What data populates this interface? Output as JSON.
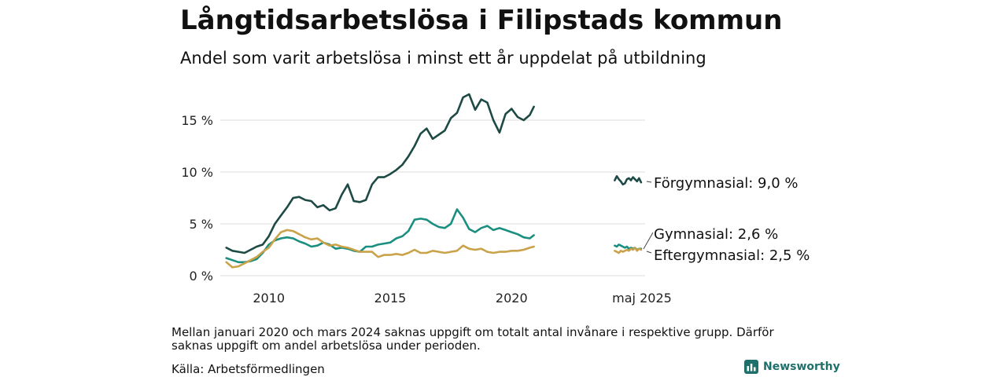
{
  "title": "Långtidsarbetslösa i Filipstads kommun",
  "subtitle": "Andel som varit arbetslösa i minst ett år uppdelat på utbildning",
  "note": "Mellan januari 2020 och mars 2024 saknas uppgift om totalt antal invånare i respektive grupp. Därför saknas uppgift om andel arbetslösa under perioden.",
  "source": "Källa: Arbetsförmedlingen",
  "brand": "Newsworthy",
  "colors": {
    "forgymnasial": "#1d4a44",
    "gymnasial": "#1a8f80",
    "eftergymnasial": "#c9a24a",
    "grid": "#dddddd",
    "brand": "#1f6f6a"
  },
  "chart_data": {
    "type": "line",
    "x_ticks": [
      "2010",
      "2015",
      "2020",
      "maj 2025"
    ],
    "y_ticks": [
      "0 %",
      "5 %",
      "10 %",
      "15 %"
    ],
    "ylim": [
      0,
      18
    ],
    "grid": true,
    "series_keys": [
      {
        "name": "Förgymnasial",
        "end_label": "Förgymnasial: 9,0 %",
        "color_key": "forgymnasial"
      },
      {
        "name": "Gymnasial",
        "end_label": "Gymnasial: 2,6 %",
        "color_key": "gymnasial"
      },
      {
        "name": "Eftergymnasial",
        "end_label": "Eftergymnasial: 2,5 %",
        "color_key": "eftergymnasial"
      }
    ],
    "series": [
      {
        "name": "Förgymnasial",
        "x": [
          "2008-04",
          "2008-07",
          "2008-10",
          "2009-01",
          "2009-04",
          "2009-07",
          "2009-10",
          "2010-01",
          "2010-04",
          "2010-07",
          "2010-10",
          "2011-01",
          "2011-04",
          "2011-07",
          "2011-10",
          "2012-01",
          "2012-04",
          "2012-07",
          "2012-10",
          "2013-01",
          "2013-04",
          "2013-07",
          "2013-10",
          "2014-01",
          "2014-04",
          "2014-07",
          "2014-10",
          "2015-01",
          "2015-04",
          "2015-07",
          "2015-10",
          "2016-01",
          "2016-04",
          "2016-07",
          "2016-10",
          "2017-01",
          "2017-04",
          "2017-07",
          "2017-10",
          "2018-01",
          "2018-04",
          "2018-07",
          "2018-10",
          "2019-01",
          "2019-04",
          "2019-07",
          "2019-10",
          "2020-01",
          "2020-04",
          "2020-07",
          "2020-10",
          "2020-12"
        ],
        "values": [
          2.7,
          2.4,
          2.3,
          2.2,
          2.5,
          2.8,
          3.0,
          3.8,
          5.0,
          5.8,
          6.6,
          7.5,
          7.6,
          7.3,
          7.2,
          6.6,
          6.8,
          6.3,
          6.5,
          7.8,
          8.8,
          7.2,
          7.1,
          7.3,
          8.8,
          9.5,
          9.5,
          9.8,
          10.2,
          10.7,
          11.5,
          12.5,
          13.7,
          14.2,
          13.2,
          13.6,
          14.0,
          15.2,
          15.7,
          17.2,
          17.5,
          16.0,
          17.0,
          16.7,
          15.0,
          13.8,
          15.6,
          16.1,
          15.3,
          15.0,
          15.5,
          16.3
        ]
      },
      {
        "name": "Gymnasial",
        "x": [
          "2008-04",
          "2008-07",
          "2008-10",
          "2009-01",
          "2009-04",
          "2009-07",
          "2009-10",
          "2010-01",
          "2010-04",
          "2010-07",
          "2010-10",
          "2011-01",
          "2011-04",
          "2011-07",
          "2011-10",
          "2012-01",
          "2012-04",
          "2012-07",
          "2012-10",
          "2013-01",
          "2013-04",
          "2013-07",
          "2013-10",
          "2014-01",
          "2014-04",
          "2014-07",
          "2014-10",
          "2015-01",
          "2015-04",
          "2015-07",
          "2015-10",
          "2016-01",
          "2016-04",
          "2016-07",
          "2016-10",
          "2017-01",
          "2017-04",
          "2017-07",
          "2017-10",
          "2018-01",
          "2018-04",
          "2018-07",
          "2018-10",
          "2019-01",
          "2019-04",
          "2019-07",
          "2019-10",
          "2020-01",
          "2020-04",
          "2020-07",
          "2020-10",
          "2020-12"
        ],
        "values": [
          1.7,
          1.5,
          1.3,
          1.3,
          1.4,
          1.6,
          2.2,
          3.0,
          3.4,
          3.6,
          3.7,
          3.6,
          3.3,
          3.1,
          2.8,
          2.9,
          3.2,
          3.0,
          2.6,
          2.7,
          2.6,
          2.4,
          2.3,
          2.8,
          2.8,
          3.0,
          3.1,
          3.2,
          3.6,
          3.8,
          4.3,
          5.4,
          5.5,
          5.4,
          5.0,
          4.7,
          4.6,
          5.0,
          6.4,
          5.6,
          4.5,
          4.2,
          4.6,
          4.8,
          4.4,
          4.6,
          4.4,
          4.2,
          4.0,
          3.7,
          3.6,
          3.9
        ]
      },
      {
        "name": "Eftergymnasial",
        "x": [
          "2008-04",
          "2008-07",
          "2008-10",
          "2009-01",
          "2009-04",
          "2009-07",
          "2009-10",
          "2010-01",
          "2010-04",
          "2010-07",
          "2010-10",
          "2011-01",
          "2011-04",
          "2011-07",
          "2011-10",
          "2012-01",
          "2012-04",
          "2012-07",
          "2012-10",
          "2013-01",
          "2013-04",
          "2013-07",
          "2013-10",
          "2014-01",
          "2014-04",
          "2014-07",
          "2014-10",
          "2015-01",
          "2015-04",
          "2015-07",
          "2015-10",
          "2016-01",
          "2016-04",
          "2016-07",
          "2016-10",
          "2017-01",
          "2017-04",
          "2017-07",
          "2017-10",
          "2018-01",
          "2018-04",
          "2018-07",
          "2018-10",
          "2019-01",
          "2019-04",
          "2019-07",
          "2019-10",
          "2020-01",
          "2020-04",
          "2020-07",
          "2020-10",
          "2020-12"
        ],
        "values": [
          1.3,
          0.8,
          0.9,
          1.2,
          1.5,
          1.8,
          2.3,
          2.7,
          3.5,
          4.2,
          4.4,
          4.3,
          4.0,
          3.7,
          3.5,
          3.6,
          3.2,
          2.9,
          3.0,
          2.8,
          2.7,
          2.5,
          2.3,
          2.3,
          2.3,
          1.8,
          2.0,
          2.0,
          2.1,
          2.0,
          2.2,
          2.5,
          2.2,
          2.2,
          2.4,
          2.3,
          2.2,
          2.3,
          2.4,
          2.9,
          2.6,
          2.5,
          2.6,
          2.3,
          2.2,
          2.3,
          2.3,
          2.4,
          2.4,
          2.5,
          2.7,
          2.8
        ]
      },
      {
        "name": "Förgymnasial",
        "x": [
          "2024-04",
          "2024-05",
          "2024-06",
          "2024-07",
          "2024-08",
          "2024-09",
          "2024-10",
          "2024-11",
          "2024-12",
          "2025-01",
          "2025-02",
          "2025-03",
          "2025-04",
          "2025-05"
        ],
        "values": [
          9.2,
          9.6,
          9.3,
          9.1,
          8.8,
          8.9,
          9.3,
          9.4,
          9.2,
          9.5,
          9.3,
          9.1,
          9.4,
          9.0
        ]
      },
      {
        "name": "Gymnasial",
        "x": [
          "2024-04",
          "2024-05",
          "2024-06",
          "2024-07",
          "2024-08",
          "2024-09",
          "2024-10",
          "2024-11",
          "2024-12",
          "2025-01",
          "2025-02",
          "2025-03",
          "2025-04",
          "2025-05"
        ],
        "values": [
          2.9,
          2.8,
          3.0,
          2.9,
          2.8,
          2.7,
          2.8,
          2.6,
          2.7,
          2.6,
          2.7,
          2.5,
          2.6,
          2.6
        ]
      },
      {
        "name": "Eftergymnasial",
        "x": [
          "2024-04",
          "2024-05",
          "2024-06",
          "2024-07",
          "2024-08",
          "2024-09",
          "2024-10",
          "2024-11",
          "2024-12",
          "2025-01",
          "2025-02",
          "2025-03",
          "2025-04",
          "2025-05"
        ],
        "values": [
          2.4,
          2.3,
          2.2,
          2.4,
          2.3,
          2.4,
          2.5,
          2.4,
          2.6,
          2.5,
          2.7,
          2.4,
          2.6,
          2.5
        ]
      }
    ]
  }
}
